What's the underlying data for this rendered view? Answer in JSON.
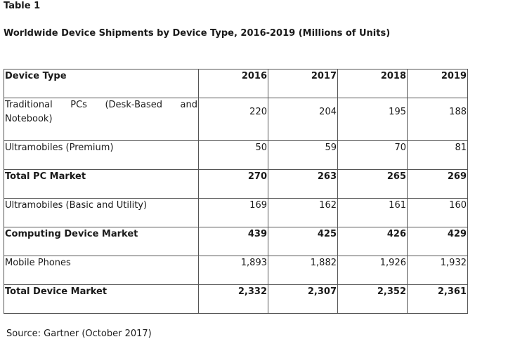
{
  "label": "Table 1",
  "chart_data": {
    "type": "table",
    "title": "Worldwide Device Shipments by Device Type, 2016-2019 (Millions of Units)",
    "columns": [
      "Device Type",
      "2016",
      "2017",
      "2018",
      "2019"
    ],
    "rows": [
      {
        "category": "Traditional PCs (Desk-Based and Notebook)",
        "values": [
          "220",
          "204",
          "195",
          "188"
        ],
        "bold": false
      },
      {
        "category": "Ultramobiles (Premium)",
        "values": [
          "50",
          "59",
          "70",
          "81"
        ],
        "bold": false
      },
      {
        "category": "Total PC Market",
        "values": [
          "270",
          "263",
          "265",
          "269"
        ],
        "bold": true
      },
      {
        "category": "Ultramobiles (Basic and Utility)",
        "values": [
          "169",
          "162",
          "161",
          "160"
        ],
        "bold": false
      },
      {
        "category": "Computing Device Market",
        "values": [
          "439",
          "425",
          "426",
          "429"
        ],
        "bold": true
      },
      {
        "category": "Mobile Phones",
        "values": [
          "1,893",
          "1,882",
          "1,926",
          "1,932"
        ],
        "bold": false
      },
      {
        "category": "Total Device Market",
        "values": [
          "2,332",
          "2,307",
          "2,352",
          "2,361"
        ],
        "bold": true
      }
    ]
  },
  "source": "Source: Gartner (October 2017)"
}
